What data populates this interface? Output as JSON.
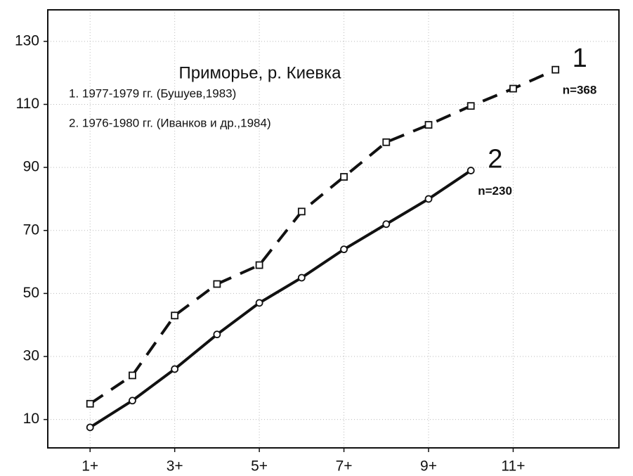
{
  "chart_data": {
    "type": "line",
    "title": "Приморье, р. Киевка",
    "legend_lines": [
      "1. 1977-1979 гг. (Бушуев,1983)",
      "2. 1976-1980 гг. (Иванков и др.,1984)"
    ],
    "xlim": [
      0,
      13.5
    ],
    "xticks": [
      {
        "value": 1,
        "label": "1+"
      },
      {
        "value": 3,
        "label": "3+"
      },
      {
        "value": 5,
        "label": "5+"
      },
      {
        "value": 7,
        "label": "7+"
      },
      {
        "value": 9,
        "label": "9+"
      },
      {
        "value": 11,
        "label": "11+"
      }
    ],
    "ylim": [
      1,
      140
    ],
    "yticks": [
      10,
      30,
      50,
      70,
      90,
      110,
      130
    ],
    "grid": true,
    "series": [
      {
        "name": "1",
        "note": "n=368",
        "color": "#111111",
        "dash": true,
        "marker": "square",
        "x": [
          1,
          2,
          3,
          4,
          5,
          6,
          7,
          8,
          9,
          10,
          11,
          12
        ],
        "values": [
          15,
          24,
          43,
          53,
          59,
          76,
          87,
          98,
          103.5,
          109.5,
          115,
          121
        ]
      },
      {
        "name": "2",
        "note": "n=230",
        "color": "#111111",
        "dash": false,
        "marker": "circle",
        "x": [
          1,
          2,
          3,
          4,
          5,
          6,
          7,
          8,
          9,
          10
        ],
        "values": [
          7.5,
          16,
          26,
          37,
          47,
          55,
          64,
          72,
          80,
          89
        ]
      }
    ]
  }
}
